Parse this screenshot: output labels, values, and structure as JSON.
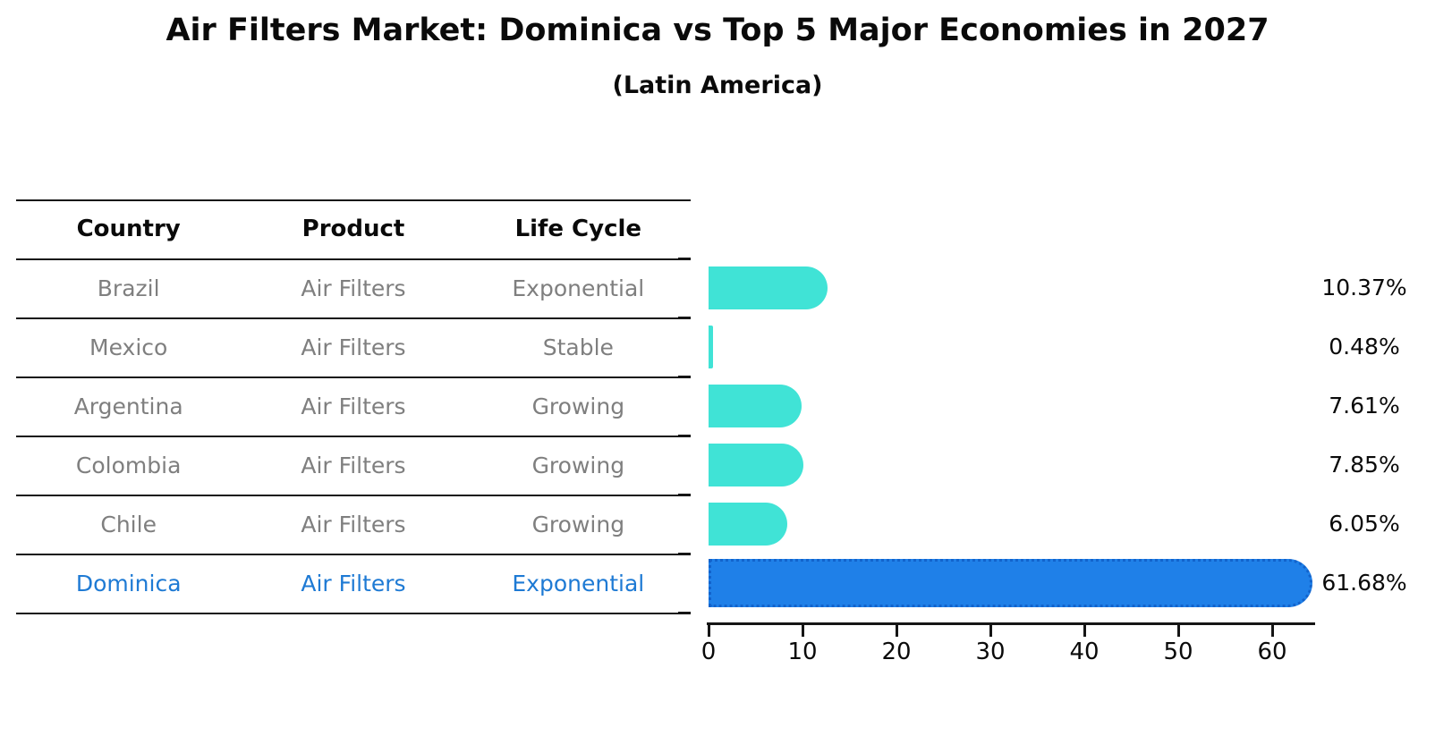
{
  "page": {
    "title": "Air Filters Market: Dominica vs Top 5 Major Economies in 2027",
    "subtitle": "(Latin America)"
  },
  "table": {
    "headers": [
      "Country",
      "Product",
      "Life Cycle"
    ],
    "rows": [
      {
        "country": "Brazil",
        "product": "Air Filters",
        "life_cycle": "Exponential",
        "highlight": false
      },
      {
        "country": "Mexico",
        "product": "Air Filters",
        "life_cycle": "Stable",
        "highlight": false
      },
      {
        "country": "Argentina",
        "product": "Air Filters",
        "life_cycle": "Growing",
        "highlight": false
      },
      {
        "country": "Colombia",
        "product": "Air Filters",
        "life_cycle": "Growing",
        "highlight": false
      },
      {
        "country": "Chile",
        "product": "Air Filters",
        "life_cycle": "Growing",
        "highlight": false
      },
      {
        "country": "Dominica",
        "product": "Air Filters",
        "life_cycle": "Exponential",
        "highlight": true
      }
    ]
  },
  "chart_data": {
    "type": "bar",
    "orientation": "horizontal",
    "title": "Air Filters Market: Dominica vs Top 5 Major Economies in 2027",
    "subtitle": "(Latin America)",
    "categories": [
      "Brazil",
      "Mexico",
      "Argentina",
      "Colombia",
      "Chile",
      "Dominica"
    ],
    "values": [
      10.37,
      0.48,
      7.61,
      7.85,
      6.05,
      61.68
    ],
    "value_labels": [
      "10.37%",
      "0.48%",
      "7.61%",
      "7.85%",
      "6.05%",
      "61.68%"
    ],
    "x_ticks": [
      0,
      10,
      20,
      30,
      40,
      50,
      60
    ],
    "xlim": [
      0,
      64.7
    ],
    "xlabel": "",
    "ylabel": "",
    "grid": false,
    "legend": false,
    "highlight_category": "Dominica",
    "colors": {
      "bar": "#40E3D6",
      "highlight_bar": "#1F80E8",
      "highlight_border": "#1263CC",
      "highlight_text": "#1E7AD4",
      "row_text": "#7F7F7F",
      "axis": "#151515"
    }
  }
}
